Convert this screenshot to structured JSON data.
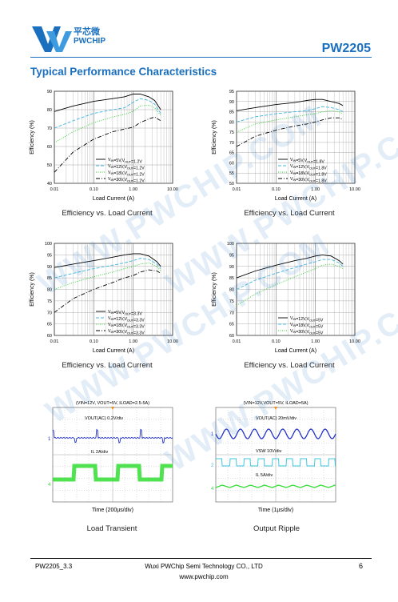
{
  "header": {
    "logo_cn": "平芯微",
    "logo_en": "PWCHIP",
    "part_number": "PW2205",
    "colors": {
      "brand": "#1a6fbf"
    }
  },
  "section_title": "Typical Performance Characteristics",
  "footer": {
    "doc_id": "PW2205_3.3",
    "company": "Wuxi PWChip Semi Technology CO., LTD",
    "website": "www.pwchip.com",
    "page": "6"
  },
  "watermark": "WWW.PWCHIP.COM",
  "charts": [
    {
      "caption": "Efficiency vs. Load Current",
      "chart_data": {
        "type": "line",
        "xlabel": "Load Current (A)",
        "ylabel": "Efficiency (%)",
        "xscale": "log",
        "xlim": [
          0.01,
          10
        ],
        "ylim": [
          40,
          90
        ],
        "xticks": [
          "0.01",
          "0.10",
          "1.00",
          "10.00"
        ],
        "yticks": [
          "40",
          "50",
          "60",
          "70",
          "80",
          "90"
        ],
        "legend_position": "bottom-right",
        "series": [
          {
            "name": "VIN=5V,VOUT=1.2V",
            "color": "#000000",
            "dash": "solid",
            "x": [
              0.01,
              0.03,
              0.1,
              0.3,
              0.6,
              1,
              1.5,
              2.5,
              3.5,
              5
            ],
            "values": [
              79,
              82,
              84.5,
              86,
              87,
              88.5,
              88.5,
              87,
              85,
              80
            ]
          },
          {
            "name": "VIN=12V,VOUT=1.2V",
            "color": "#3fb4e0",
            "dash": "dashed",
            "x": [
              0.01,
              0.03,
              0.1,
              0.3,
              0.6,
              1,
              1.5,
              2.5,
              3.5,
              5
            ],
            "values": [
              70,
              74,
              78,
              80,
              81,
              84,
              86,
              85,
              83,
              78
            ]
          },
          {
            "name": "VIN=18V,VOUT=1.2V",
            "color": "#33cc33",
            "dash": "dotted",
            "x": [
              0.01,
              0.03,
              0.1,
              0.3,
              0.6,
              1,
              1.5,
              2.5,
              3.5,
              5
            ],
            "values": [
              62,
              68,
              73,
              76,
              77.5,
              79,
              82,
              82.5,
              81,
              77
            ]
          },
          {
            "name": "VIN=30V,VOUT=1.2V",
            "color": "#000000",
            "dash": "dashdot",
            "x": [
              0.01,
              0.03,
              0.1,
              0.3,
              0.6,
              1,
              1.5,
              2.5,
              3.5,
              5
            ],
            "values": [
              46,
              57,
              64,
              68,
              69.5,
              70.5,
              73,
              75,
              76,
              74
            ]
          }
        ]
      }
    },
    {
      "caption": "Efficiency vs. Load Current",
      "chart_data": {
        "type": "line",
        "xlabel": "Load Current (A)",
        "ylabel": "Efficiency (%)",
        "xscale": "log",
        "xlim": [
          0.01,
          10
        ],
        "ylim": [
          50,
          95
        ],
        "xticks": [
          "0.01",
          "0.10",
          "1.00",
          "10.00"
        ],
        "yticks": [
          "50",
          "55",
          "60",
          "65",
          "70",
          "75",
          "80",
          "85",
          "90",
          "95"
        ],
        "legend_position": "bottom-right",
        "series": [
          {
            "name": "VIN=5V,VOUT=1.8V",
            "color": "#000000",
            "dash": "solid",
            "x": [
              0.01,
              0.03,
              0.1,
              0.3,
              0.6,
              1,
              1.5,
              2.5,
              4,
              5
            ],
            "values": [
              85.5,
              87,
              88.5,
              89.5,
              90.5,
              91,
              91,
              90,
              89,
              88
            ]
          },
          {
            "name": "VIN=12V,VOUT=1.8V",
            "color": "#3fb4e0",
            "dash": "dashed",
            "x": [
              0.01,
              0.03,
              0.1,
              0.3,
              0.6,
              1,
              1.5,
              2.5,
              4,
              5
            ],
            "values": [
              80,
              82.5,
              84,
              85,
              85.5,
              86.5,
              87.5,
              87,
              86,
              85
            ]
          },
          {
            "name": "VIN=18V,VOUT=1.8V",
            "color": "#33cc33",
            "dash": "dotted",
            "x": [
              0.01,
              0.03,
              0.1,
              0.3,
              0.6,
              1,
              1.5,
              2.5,
              4,
              5
            ],
            "values": [
              75,
              79,
              81,
              82.5,
              83.5,
              84,
              85,
              85.5,
              85,
              84
            ]
          },
          {
            "name": "VIN=30V,VOUT=1.8V",
            "color": "#000000",
            "dash": "dashdot",
            "x": [
              0.01,
              0.03,
              0.1,
              0.3,
              0.6,
              1,
              1.5,
              2.5,
              4,
              5
            ],
            "values": [
              68,
              73,
              76,
              78,
              79,
              80,
              81,
              82,
              82,
              81
            ]
          }
        ]
      }
    },
    {
      "caption": "Efficiency vs. Load Current",
      "chart_data": {
        "type": "line",
        "xlabel": "Load Current (A)",
        "ylabel": "Efficiency (%)",
        "xscale": "log",
        "xlim": [
          0.01,
          10
        ],
        "ylim": [
          60,
          100
        ],
        "xticks": [
          "0.01",
          "0.10",
          "1.00",
          "10.00"
        ],
        "yticks": [
          "60",
          "65",
          "70",
          "75",
          "80",
          "85",
          "90",
          "95",
          "100"
        ],
        "legend_position": "bottom-right",
        "series": [
          {
            "name": "VIN=5V,VOUT=3.3V",
            "color": "#000000",
            "dash": "solid",
            "x": [
              0.01,
              0.03,
              0.1,
              0.3,
              0.6,
              1,
              1.5,
              2.5,
              4,
              5
            ],
            "values": [
              89.5,
              91,
              92.5,
              94,
              95,
              95.5,
              95.5,
              94.5,
              92,
              90
            ]
          },
          {
            "name": "VIN=12V,VOUT=3.3V",
            "color": "#3fb4e0",
            "dash": "dashed",
            "x": [
              0.01,
              0.03,
              0.1,
              0.3,
              0.6,
              1,
              1.5,
              2.5,
              4,
              5
            ],
            "values": [
              85,
              87,
              89,
              90.5,
              91.5,
              92.5,
              93.5,
              93,
              91,
              89
            ]
          },
          {
            "name": "VIN=18V,VOUT=3.3V",
            "color": "#33cc33",
            "dash": "dotted",
            "x": [
              0.01,
              0.03,
              0.1,
              0.3,
              0.6,
              1,
              1.5,
              2.5,
              4,
              5
            ],
            "values": [
              80,
              83,
              85.5,
              87.5,
              89,
              90,
              91,
              91.5,
              90,
              88
            ]
          },
          {
            "name": "VIN=30V,VOUT=3.3V",
            "color": "#000000",
            "dash": "dashdot",
            "x": [
              0.01,
              0.03,
              0.1,
              0.3,
              0.6,
              1,
              1.5,
              2.5,
              4,
              5
            ],
            "values": [
              70,
              76,
              80,
              83,
              85,
              86,
              87.5,
              88.5,
              88,
              87
            ]
          }
        ]
      }
    },
    {
      "caption": "Efficiency vs. Load Current",
      "chart_data": {
        "type": "line",
        "xlabel": "Load Current (A)",
        "ylabel": "Efficiency (%)",
        "xscale": "log",
        "xlim": [
          0.01,
          10
        ],
        "ylim": [
          60,
          100
        ],
        "xticks": [
          "0.01",
          "0.10",
          "1.00",
          "10.00"
        ],
        "yticks": [
          "60",
          "65",
          "70",
          "75",
          "80",
          "85",
          "90",
          "95",
          "100"
        ],
        "legend_position": "bottom-right",
        "series": [
          {
            "name": "VIN=12V,VOUT=5V",
            "color": "#000000",
            "dash": "solid",
            "x": [
              0.01,
              0.03,
              0.1,
              0.3,
              0.6,
              1,
              1.5,
              2.5,
              4,
              5
            ],
            "values": [
              85,
              88,
              90.5,
              92.5,
              93.5,
              94.5,
              95,
              94.5,
              92.5,
              91
            ]
          },
          {
            "name": "VIN=18V,VOUT=5V",
            "color": "#3fb4e0",
            "dash": "dashed",
            "x": [
              0.01,
              0.03,
              0.1,
              0.3,
              0.6,
              1,
              1.5,
              2.5,
              4,
              5
            ],
            "values": [
              80,
              84,
              87,
              89.5,
              91,
              92,
              93,
              93,
              91.5,
              90
            ]
          },
          {
            "name": "VIN=30V,VOUT=5V",
            "color": "#33cc33",
            "dash": "dotted",
            "x": [
              0.01,
              0.03,
              0.1,
              0.3,
              0.6,
              1,
              1.5,
              2.5,
              4,
              5
            ],
            "values": [
              73,
              78,
              82,
              85.5,
              87.5,
              89,
              90.5,
              91,
              90,
              89
            ]
          }
        ]
      }
    }
  ],
  "scopes": [
    {
      "caption": "Load Transient",
      "condition": "(VIN=12V, VOUT=5V, ILOAD=2.5-5A)",
      "time_label": "Time (200µs/div)",
      "labels": [
        {
          "text": "VOUT(AC)   0.2V/div"
        },
        {
          "text": "IL         2A/div"
        }
      ],
      "channel_markers": [
        "1",
        "4"
      ],
      "colors": {
        "ch1": "#2233cc",
        "ch2": "#33dd33"
      }
    },
    {
      "caption": "Output Ripple",
      "condition": "(VIN=12V,VOUT=5V, ILOAD=5A)",
      "time_label": "Time (1µs/div)",
      "labels": [
        {
          "text": "VOUT(AC)   20mV/div"
        },
        {
          "text": "VSW        10V/div"
        },
        {
          "text": "IL         5A/div"
        }
      ],
      "channel_markers": [
        "1",
        "2",
        "4"
      ],
      "colors": {
        "ch1": "#2233cc",
        "ch2": "#3fc7e0",
        "ch3": "#33dd33"
      }
    }
  ]
}
